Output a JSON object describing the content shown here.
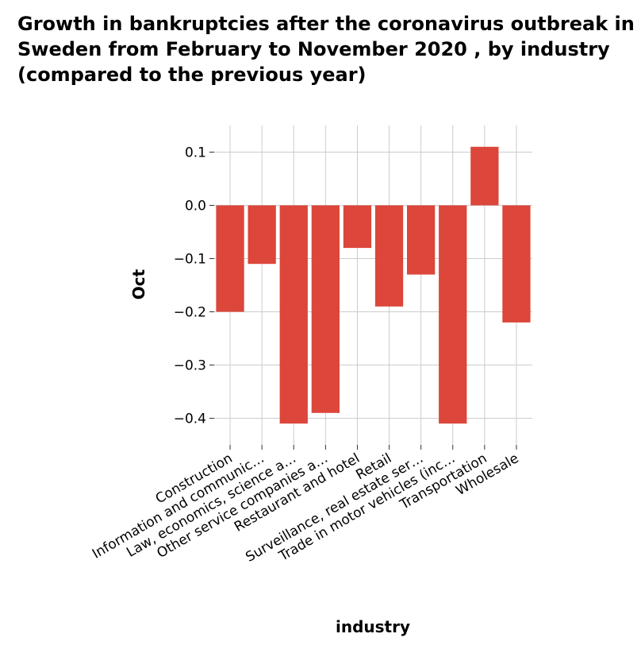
{
  "chart_data": {
    "type": "bar",
    "title": "Growth in bankruptcies after the coronavirus outbreak in Sweden from February to November 2020 , by industry (compared to the previous year)",
    "xlabel": "industry",
    "ylabel": "Oct",
    "categories": [
      "Construction",
      "Information and communic…",
      "Law, economics, science a…",
      "Other service companies a…",
      "Restaurant and hotel",
      "Retail",
      "Surveillance, real estate ser…",
      "Trade in motor vehicles (inc…",
      "Transportation",
      "Wholesale"
    ],
    "values": [
      -0.2,
      -0.11,
      -0.41,
      -0.39,
      -0.08,
      -0.19,
      -0.13,
      -0.41,
      0.11,
      -0.22
    ],
    "ylim": [
      -0.45,
      0.15
    ],
    "yticks": [
      0.1,
      0.0,
      -0.1,
      -0.2,
      -0.3,
      -0.4
    ],
    "ytick_labels": [
      "0.1",
      "0.0",
      "−0.1",
      "−0.2",
      "−0.3",
      "−0.4"
    ],
    "grid": true,
    "legend": "none",
    "colors": {
      "bar": "#dc463b",
      "grid": "#cccccc",
      "background": "#ffffff"
    }
  }
}
